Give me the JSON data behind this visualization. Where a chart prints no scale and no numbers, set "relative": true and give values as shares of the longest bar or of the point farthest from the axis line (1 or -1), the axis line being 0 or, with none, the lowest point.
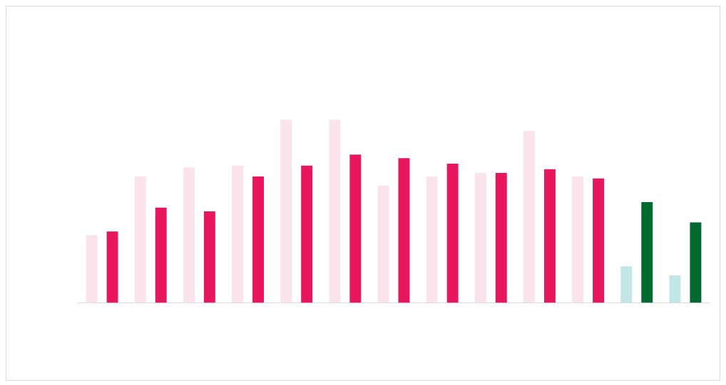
{
  "chart_data": {
    "type": "bar",
    "relative": true,
    "categories": [
      null,
      null,
      null,
      null,
      null,
      null,
      null,
      null,
      null,
      null,
      null,
      null,
      null
    ],
    "series": [
      {
        "colors": [
          "#fbe3ec",
          "#fbe3ec",
          "#fbe3ec",
          "#fbe3ec",
          "#fbe3ec",
          "#fbe3ec",
          "#fbe3ec",
          "#fbe3ec",
          "#fbe3ec",
          "#fbe3ec",
          "#fbe3ec",
          "#c2e6e6",
          "#c2e6e6"
        ],
        "values": [
          0.37,
          0.69,
          0.74,
          0.75,
          1.0,
          1.0,
          0.64,
          0.69,
          0.71,
          0.94,
          0.69,
          0.2,
          0.15
        ]
      },
      {
        "colors": [
          "#e8175d",
          "#e8175d",
          "#e8175d",
          "#e8175d",
          "#e8175d",
          "#e8175d",
          "#e8175d",
          "#e8175d",
          "#e8175d",
          "#e8175d",
          "#e8175d",
          "#006a2e",
          "#006a2e"
        ],
        "values": [
          0.39,
          0.52,
          0.5,
          0.69,
          0.75,
          0.81,
          0.79,
          0.76,
          0.71,
          0.73,
          0.68,
          0.55,
          0.44
        ]
      }
    ]
  }
}
